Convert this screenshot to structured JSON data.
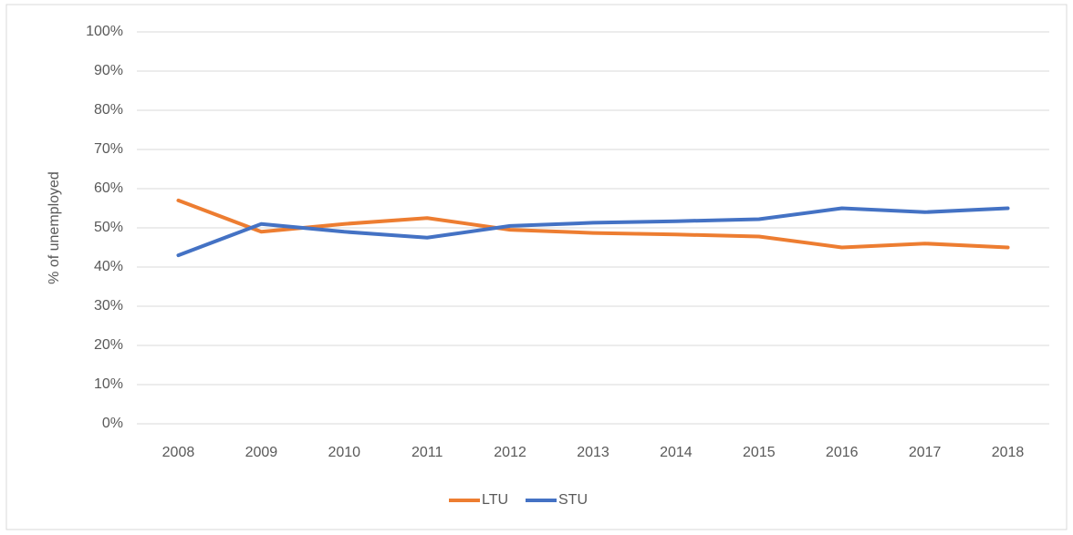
{
  "chart_data": {
    "type": "line",
    "y_label": "% of unemployed",
    "categories": [
      "2008",
      "2009",
      "2010",
      "2011",
      "2012",
      "2013",
      "2014",
      "2015",
      "2016",
      "2017",
      "2018"
    ],
    "series": [
      {
        "name": "LTU",
        "color": "#ed7d31",
        "values": [
          57,
          49,
          51,
          52.5,
          49.5,
          48.7,
          48.3,
          47.8,
          45,
          46,
          45
        ]
      },
      {
        "name": "STU",
        "color": "#4472c4",
        "values": [
          43,
          51,
          49,
          47.5,
          50.5,
          51.3,
          51.7,
          52.2,
          55,
          54,
          55
        ]
      }
    ],
    "ylim": [
      0,
      100
    ],
    "yticks": [
      {
        "value": 0,
        "label": "0%"
      },
      {
        "value": 10,
        "label": "10%"
      },
      {
        "value": 20,
        "label": "20%"
      },
      {
        "value": 30,
        "label": "30%"
      },
      {
        "value": 40,
        "label": "40%"
      },
      {
        "value": 50,
        "label": "50%"
      },
      {
        "value": 60,
        "label": "60%"
      },
      {
        "value": 70,
        "label": "70%"
      },
      {
        "value": 80,
        "label": "80%"
      },
      {
        "value": 90,
        "label": "90%"
      },
      {
        "value": 100,
        "label": "100%"
      }
    ],
    "grid": true,
    "legend": "bottom"
  }
}
